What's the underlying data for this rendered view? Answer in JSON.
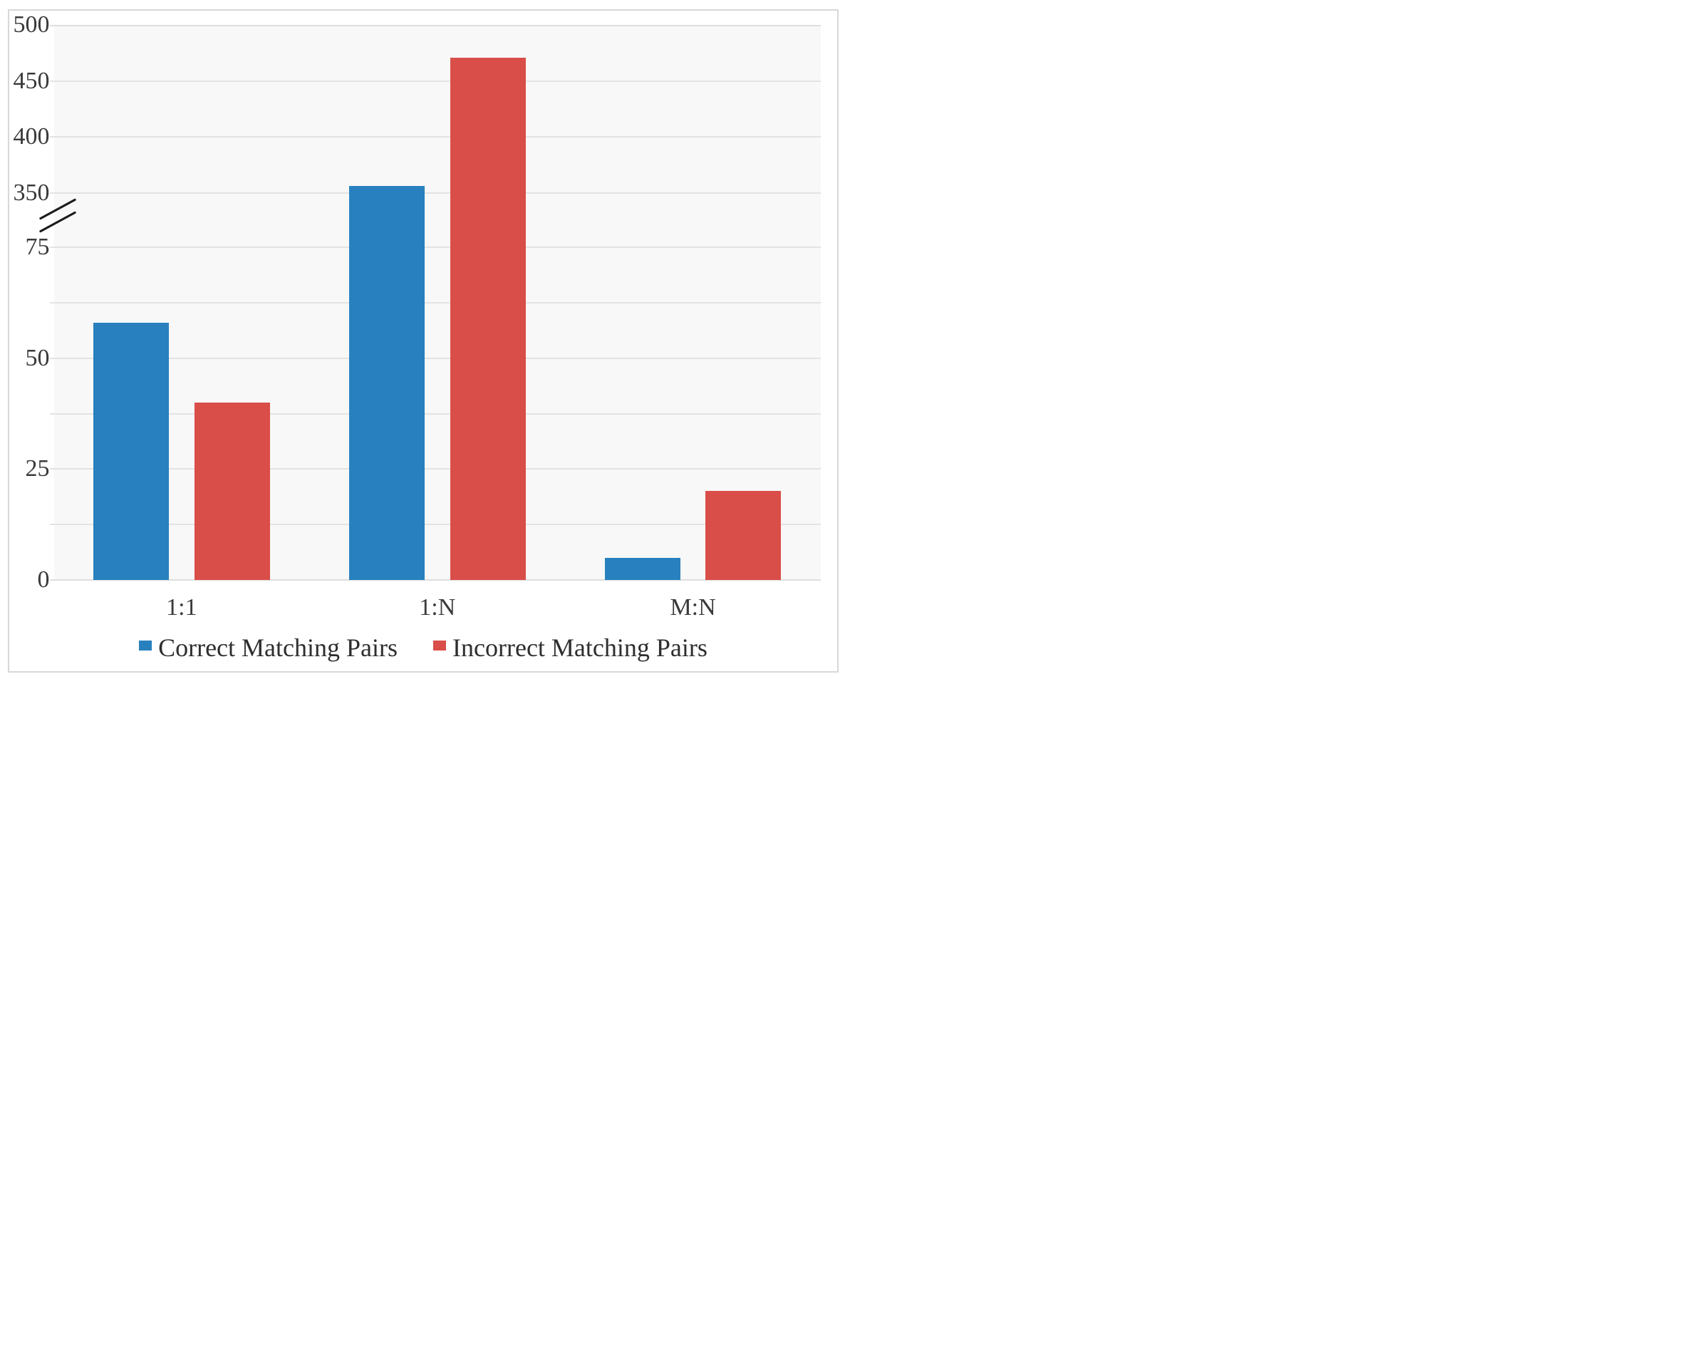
{
  "chart_data": {
    "type": "bar",
    "categories": [
      "1:1",
      "1:N",
      "M:N"
    ],
    "series": [
      {
        "name": "Correct Matching Pairs",
        "color": "#2881be",
        "values": [
          58,
          356,
          5
        ]
      },
      {
        "name": "Incorrect Matching Pairs",
        "color": "#d94e49",
        "values": [
          40,
          471,
          20
        ]
      }
    ],
    "yaxis": {
      "broken": true,
      "break_between": [
        75,
        350
      ],
      "lower": {
        "min": 0,
        "max": 75,
        "label_step": 25,
        "minor_step": 12.5,
        "tick_labels": [
          "0",
          "25",
          "50",
          "75"
        ]
      },
      "upper": {
        "min": 350,
        "max": 500,
        "label_step": 50,
        "tick_labels": [
          "350",
          "400",
          "450",
          "500"
        ]
      }
    },
    "xlabel": "",
    "ylabel": "",
    "title": "",
    "grid": true,
    "legend_position": "bottom"
  }
}
